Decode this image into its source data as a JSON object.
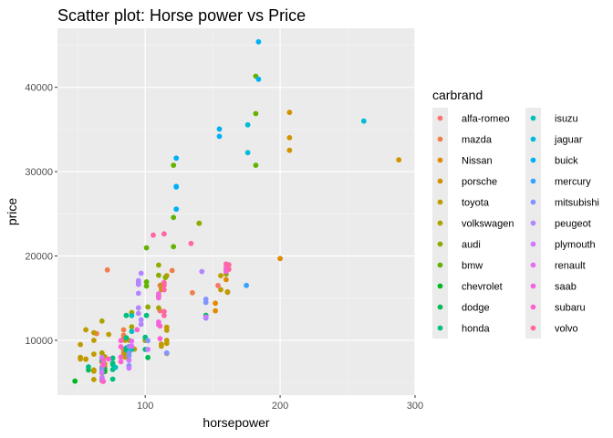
{
  "chart_data": {
    "type": "scatter",
    "title": "Scatter plot: Horse power vs Price",
    "xlabel": "horsepower",
    "ylabel": "price",
    "xlim": [
      35,
      300
    ],
    "ylim": [
      3500,
      47000
    ],
    "x_ticks": [
      100,
      200,
      300
    ],
    "y_ticks": [
      10000,
      20000,
      30000,
      40000
    ],
    "x_tick_labels": [
      "100",
      "200",
      "300"
    ],
    "y_tick_labels": [
      "10000",
      "20000",
      "30000",
      "40000"
    ],
    "grid": true,
    "legend": {
      "title": "carbrand",
      "placement": "right",
      "columns": 2
    },
    "series": [
      {
        "name": "alfa-romeo",
        "color": "#F8766D",
        "points": [
          [
            111,
            13495
          ],
          [
            111,
            16500
          ],
          [
            154,
            16500
          ]
        ]
      },
      {
        "name": "mazda",
        "color": "#EF7F49",
        "points": [
          [
            68,
            5195
          ],
          [
            68,
            6095
          ],
          [
            68,
            6795
          ],
          [
            68,
            6695
          ],
          [
            68,
            7395
          ],
          [
            84,
            8845
          ],
          [
            84,
            8495
          ],
          [
            84,
            10595
          ],
          [
            84,
            10245
          ],
          [
            64,
            10795
          ],
          [
            84,
            11245
          ],
          [
            120,
            18280
          ],
          [
            72,
            18344
          ],
          [
            135,
            15645
          ]
        ]
      },
      {
        "name": "Nissan",
        "color": "#E38900",
        "points": [
          [
            69,
            7099
          ],
          [
            200,
            19699
          ],
          [
            152,
            13499
          ],
          [
            152,
            14399
          ],
          [
            160,
            17199
          ],
          [
            160,
            18399
          ],
          [
            160,
            18499
          ]
        ]
      },
      {
        "name": "porsche",
        "color": "#D39200",
        "points": [
          [
            207,
            32528
          ],
          [
            207,
            34028
          ],
          [
            207,
            37028
          ],
          [
            288,
            31400
          ]
        ]
      },
      {
        "name": "toyota",
        "color": "#C09B00",
        "points": [
          [
            62,
            5348
          ],
          [
            62,
            6338
          ],
          [
            62,
            6488
          ],
          [
            70,
            6918
          ],
          [
            70,
            7198
          ],
          [
            56,
            7788
          ],
          [
            56,
            7738
          ],
          [
            62,
            8358
          ],
          [
            70,
            8058
          ],
          [
            112,
            9298
          ],
          [
            112,
            9538
          ],
          [
            116,
            8449
          ],
          [
            116,
            9639
          ],
          [
            116,
            9989
          ],
          [
            116,
            11199
          ],
          [
            116,
            11549
          ],
          [
            116,
            17669
          ],
          [
            92,
            8948
          ],
          [
            73,
            10698
          ],
          [
            62,
            9988
          ],
          [
            62,
            10898
          ],
          [
            56,
            11248
          ],
          [
            112,
            16558
          ],
          [
            112,
            15998
          ],
          [
            161,
            15690
          ],
          [
            161,
            15750
          ],
          [
            156,
            15998
          ],
          [
            156,
            17669
          ],
          [
            52,
            7775
          ],
          [
            52,
            7975
          ],
          [
            85,
            7995
          ],
          [
            85,
            8195
          ],
          [
            85,
            8495
          ],
          [
            52,
            9495
          ],
          [
            85,
            9995
          ]
        ]
      },
      {
        "name": "volkswagen",
        "color": "#A9A400",
        "points": [
          [
            68,
            7975
          ],
          [
            68,
            8495
          ],
          [
            88,
            9995
          ],
          [
            90,
            11595
          ],
          [
            100,
            9980
          ],
          [
            90,
            13295
          ],
          [
            110,
            13845
          ],
          [
            68,
            12290
          ],
          [
            140,
            23875
          ]
        ]
      },
      {
        "name": "audi",
        "color": "#8EAB00",
        "points": [
          [
            102,
            13950
          ],
          [
            115,
            17450
          ],
          [
            110,
            15250
          ],
          [
            110,
            17710
          ],
          [
            110,
            18920
          ],
          [
            140,
            23875
          ],
          [
            160,
            17859
          ]
        ]
      },
      {
        "name": "bmw",
        "color": "#64B200",
        "points": [
          [
            101,
            16430
          ],
          [
            101,
            16925
          ],
          [
            101,
            20970
          ],
          [
            121,
            21105
          ],
          [
            121,
            24565
          ],
          [
            121,
            30760
          ],
          [
            182,
            41315
          ],
          [
            182,
            36880
          ],
          [
            182,
            30760
          ]
        ]
      },
      {
        "name": "chevrolet",
        "color": "#00B81F",
        "points": [
          [
            48,
            5151
          ],
          [
            70,
            6295
          ],
          [
            70,
            6575
          ]
        ]
      },
      {
        "name": "dodge",
        "color": "#00BC56",
        "points": [
          [
            68,
            5572
          ],
          [
            68,
            6377
          ],
          [
            102,
            7957
          ],
          [
            68,
            6229
          ],
          [
            68,
            6692
          ],
          [
            68,
            7609
          ],
          [
            88,
            8558
          ],
          [
            145,
            12964
          ],
          [
            58,
            6479
          ]
        ]
      },
      {
        "name": "honda",
        "color": "#00BF7D",
        "points": [
          [
            58,
            6855
          ],
          [
            76,
            5399
          ],
          [
            76,
            6529
          ],
          [
            76,
            7129
          ],
          [
            76,
            7295
          ],
          [
            76,
            7895
          ],
          [
            86,
            9095
          ],
          [
            86,
            8845
          ],
          [
            86,
            10295
          ],
          [
            86,
            12945
          ],
          [
            100,
            10345
          ],
          [
            100,
            8921
          ],
          [
            101,
            12945
          ]
        ]
      },
      {
        "name": "isuzu",
        "color": "#00C0B8",
        "points": [
          [
            78,
            6785
          ],
          [
            90,
            11048
          ],
          [
            90,
            8916
          ],
          [
            90,
            12940
          ]
        ]
      },
      {
        "name": "jaguar",
        "color": "#00BCD8",
        "points": [
          [
            176,
            32250
          ],
          [
            176,
            35550
          ],
          [
            262,
            36000
          ]
        ]
      },
      {
        "name": "buick",
        "color": "#00B0F6",
        "points": [
          [
            155,
            34184
          ],
          [
            155,
            35056
          ],
          [
            184,
            40960
          ],
          [
            184,
            45400
          ],
          [
            123,
            28176
          ],
          [
            123,
            31600
          ],
          [
            123,
            25552
          ],
          [
            123,
            28248
          ]
        ]
      },
      {
        "name": "mercury",
        "color": "#35A2FF",
        "points": [
          [
            175,
            16503
          ]
        ]
      },
      {
        "name": "mitsubishi",
        "color": "#8494FF",
        "points": [
          [
            68,
            5389
          ],
          [
            68,
            6189
          ],
          [
            68,
            6669
          ],
          [
            88,
            7689
          ],
          [
            88,
            8189
          ],
          [
            88,
            9279
          ],
          [
            102,
            9959
          ],
          [
            116,
            8499
          ],
          [
            145,
            12629
          ],
          [
            145,
            14489
          ],
          [
            145,
            14869
          ],
          [
            88,
            6989
          ],
          [
            88,
            8499
          ]
        ]
      },
      {
        "name": "peugeot",
        "color": "#B385FF",
        "points": [
          [
            97,
            11900
          ],
          [
            95,
            13200
          ],
          [
            97,
            12440
          ],
          [
            95,
            13860
          ],
          [
            95,
            15580
          ],
          [
            95,
            16900
          ],
          [
            95,
            16695
          ],
          [
            95,
            17075
          ],
          [
            95,
            16630
          ],
          [
            97,
            17950
          ],
          [
            142,
            18150
          ]
        ]
      },
      {
        "name": "plymouth",
        "color": "#D078FF",
        "points": [
          [
            68,
            5572
          ],
          [
            68,
            7957
          ],
          [
            68,
            6229
          ],
          [
            88,
            6692
          ],
          [
            88,
            7609
          ],
          [
            102,
            8921
          ],
          [
            145,
            12764
          ]
        ]
      },
      {
        "name": "renault",
        "color": "#E76BF3",
        "points": [
          [
            90,
            9295
          ],
          [
            90,
            9895
          ]
        ]
      },
      {
        "name": "saab",
        "color": "#F564E3",
        "points": [
          [
            110,
            11850
          ],
          [
            110,
            12170
          ],
          [
            110,
            15040
          ],
          [
            110,
            15510
          ],
          [
            160,
            18150
          ],
          [
            160,
            18620
          ]
        ]
      },
      {
        "name": "subaru",
        "color": "#FD61D1",
        "points": [
          [
            69,
            5118
          ],
          [
            69,
            7053
          ],
          [
            69,
            7603
          ],
          [
            69,
            7126
          ],
          [
            73,
            7775
          ],
          [
            82,
            9960
          ],
          [
            82,
            9233
          ],
          [
            94,
            11259
          ],
          [
            82,
            7463
          ],
          [
            111,
            10198
          ],
          [
            82,
            8013
          ],
          [
            111,
            11694
          ]
        ]
      },
      {
        "name": "volvo",
        "color": "#FF67A4",
        "points": [
          [
            114,
            12940
          ],
          [
            114,
            13415
          ],
          [
            114,
            15985
          ],
          [
            114,
            16515
          ],
          [
            162,
            18420
          ],
          [
            162,
            18950
          ],
          [
            114,
            16845
          ],
          [
            160,
            19045
          ],
          [
            134,
            21485
          ],
          [
            106,
            22470
          ],
          [
            114,
            22625
          ]
        ]
      }
    ]
  }
}
